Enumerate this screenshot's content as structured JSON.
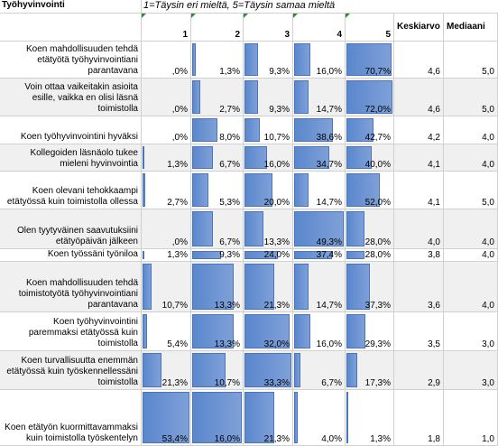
{
  "header": {
    "title": "Työhyvinvointi",
    "scale": "1=Täysin eri mieltä, 5=Täysin samaa mieltä",
    "columns": [
      "1",
      "2",
      "3",
      "4",
      "5",
      "Keskiarvo",
      "Mediaani"
    ]
  },
  "table": {
    "rows": [
      {
        "label": "Koen mahdollisuuden tehdä etätyötä työhyvinvointiani parantavana",
        "values": [
          0,
          1.3,
          9.3,
          16.0,
          70.7
        ],
        "value_labels": [
          ",0%",
          "1,3%",
          "9,3%",
          "16,0%",
          "70,7%"
        ],
        "mean": "4,6",
        "median": "5,0"
      },
      {
        "label": "Voin ottaa vaikeitakin asioita esille, vaikka en olisi läsnä toimistolla",
        "values": [
          0,
          2.7,
          9.3,
          14.7,
          72.0
        ],
        "value_labels": [
          ",0%",
          "2,7%",
          "9,3%",
          "14,7%",
          "72,0%"
        ],
        "mean": "4,6",
        "median": "5,0"
      },
      {
        "label": "Koen työhyvinvointini hyväksi",
        "values": [
          0,
          8.0,
          10.7,
          38.6,
          42.7
        ],
        "value_labels": [
          ",0%",
          "8,0%",
          "10,7%",
          "38,6%",
          "42,7%"
        ],
        "mean": "4,2",
        "median": "4,0"
      },
      {
        "label": "Kollegoiden läsnäolo tukee mieleni hyvinvointia",
        "values": [
          1.3,
          6.7,
          16.0,
          34.7,
          40.0
        ],
        "value_labels": [
          "1,3%",
          "6,7%",
          "16,0%",
          "34,7%",
          "40,0%"
        ],
        "mean": "4,1",
        "median": "4,0"
      },
      {
        "label": "Koen olevani tehokkaampi etätyössä kuin toimistolla ollessa",
        "values": [
          2.7,
          5.3,
          20.0,
          14.7,
          52.0
        ],
        "value_labels": [
          "2,7%",
          "5,3%",
          "20,0%",
          "14,7%",
          "52,0%"
        ],
        "mean": "4,1",
        "median": "5,0"
      },
      {
        "label": "Olen tyytyväinen saavutuksiini etätyöpäivän jälkeen",
        "values": [
          0,
          6.7,
          13.3,
          49.3,
          28.0
        ],
        "value_labels": [
          ",0%",
          "6,7%",
          "13,3%",
          "49,3%",
          "28,0%"
        ],
        "mean": "4,0",
        "median": "4,0"
      },
      {
        "label": "Koen työssäni työniloa",
        "values": [
          1.3,
          9.3,
          24.0,
          37.4,
          28.0
        ],
        "value_labels": [
          "1,3%",
          "9,3%",
          "24,0%",
          "37,4%",
          "28,0%"
        ],
        "mean": "3,8",
        "median": "4,0"
      },
      {
        "label": "Koen mahdollisuuden tehdä toimistotyötä työhyvinvointiani parantavana",
        "values": [
          10.7,
          13.3,
          21.3,
          14.7,
          37.3
        ],
        "value_labels": [
          "10,7%",
          "13,3%",
          "21,3%",
          "14,7%",
          "37,3%"
        ],
        "mean": "3,6",
        "median": "4,0"
      },
      {
        "label": "Koen työhyvinvointini paremmaksi etätyössä kuin toimistolla",
        "values": [
          5.4,
          13.3,
          32.0,
          16.0,
          29.3
        ],
        "value_labels": [
          "5,4%",
          "13,3%",
          "32,0%",
          "16,0%",
          "29,3%"
        ],
        "mean": "3,5",
        "median": "3,0"
      },
      {
        "label": "Koen turvallisuutta enemmän etätyössä kuin työskennellessäni toimistolla",
        "values": [
          21.3,
          10.7,
          33.3,
          6.7,
          17.3
        ],
        "value_labels": [
          "21,3%",
          "10,7%",
          "33,3%",
          "6,7%",
          "17,3%"
        ],
        "mean": "2,9",
        "median": "3,0"
      },
      {
        "label": "Koen etätyön kuormittavammaksi kuin toimistolla työskentelyn",
        "values": [
          53.4,
          16.0,
          21.3,
          4.0,
          1.3
        ],
        "value_labels": [
          "53,4%",
          "16,0%",
          "21,3%",
          "4,0%",
          "1,3%"
        ],
        "mean": "1,8",
        "median": "1,0"
      }
    ]
  }
}
